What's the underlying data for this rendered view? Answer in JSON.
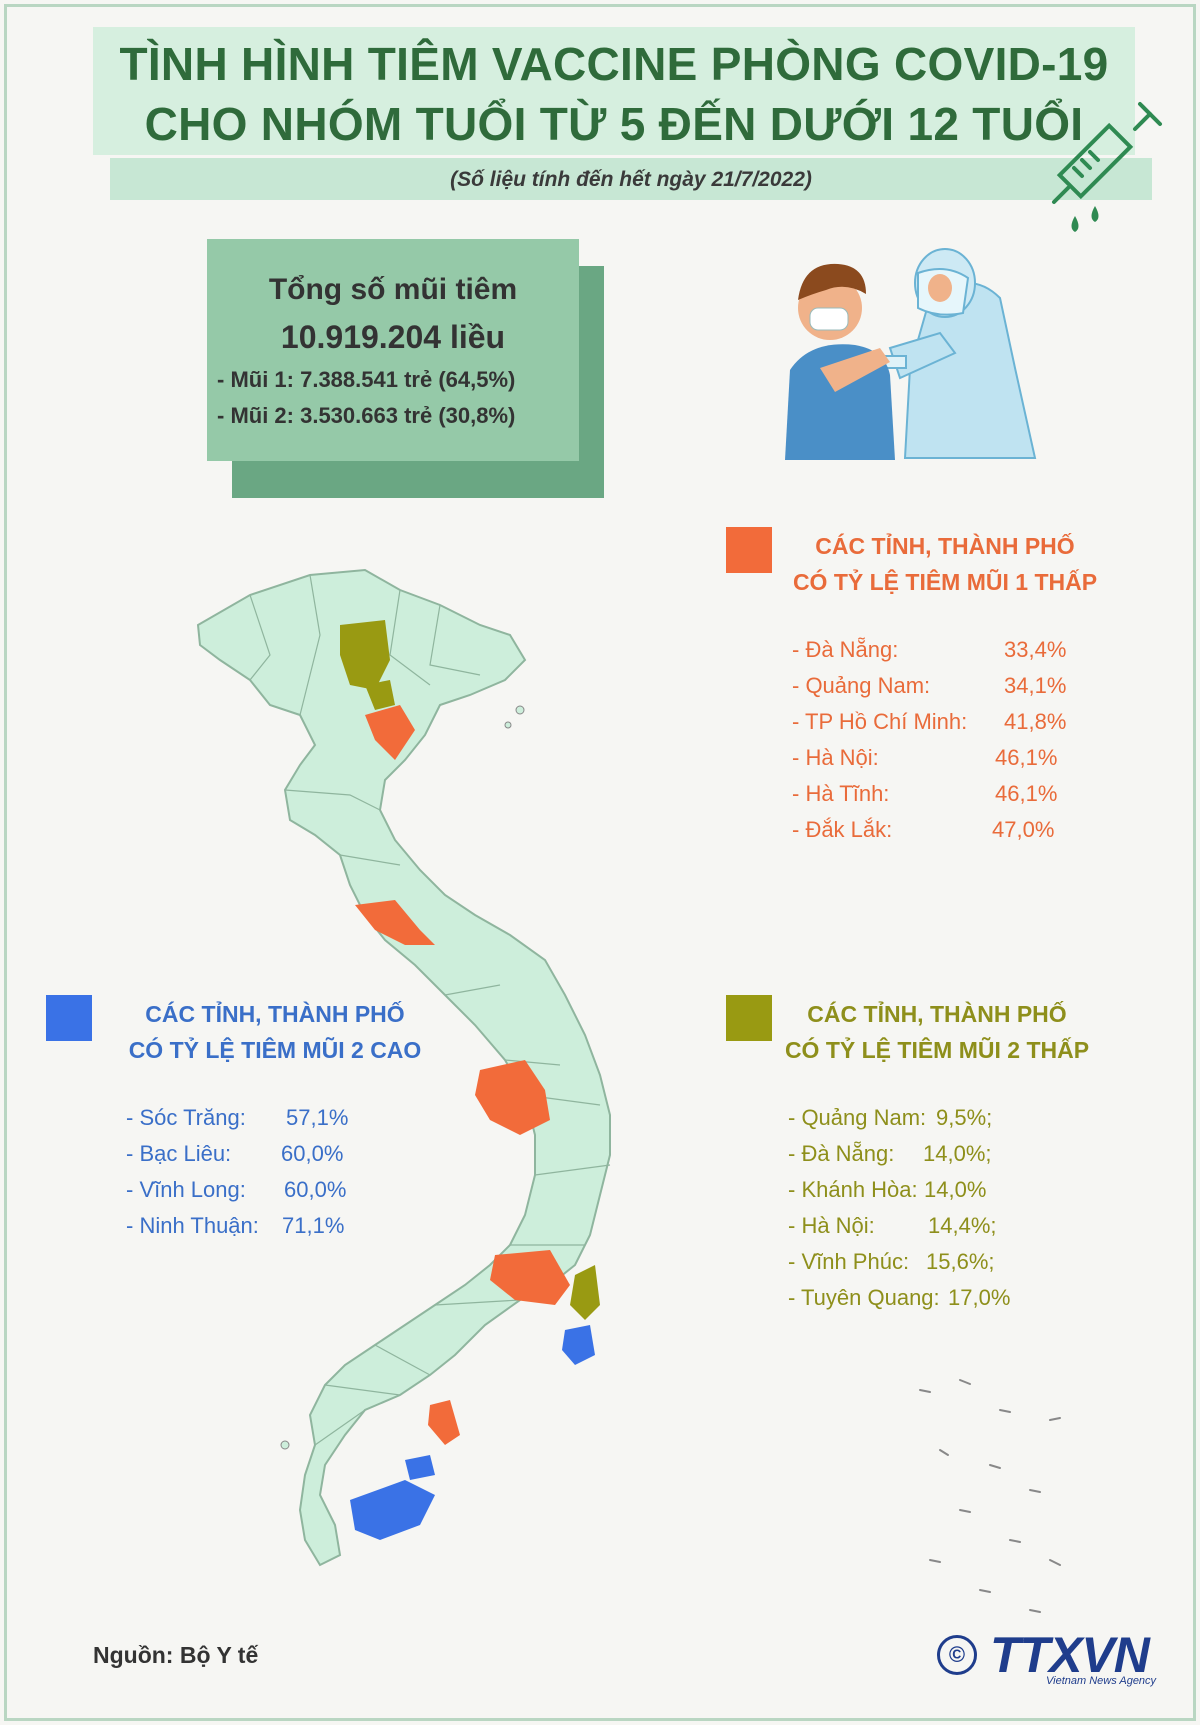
{
  "header": {
    "title_line1": "TÌNH HÌNH TIÊM VACCINE PHÒNG COVID-19",
    "title_line2": "CHO NHÓM TUỔI TỪ 5 ĐẾN DƯỚI 12 TUỔI",
    "subtitle": "(Số liệu tính đến hết ngày 21/7/2022)"
  },
  "total_box": {
    "heading": "Tổng số mũi tiêm",
    "total": "10.919.204 liều",
    "dose1": "- Mũi 1: 7.388.541 trẻ (64,5%)",
    "dose2": "- Mũi 2: 3.530.663 trẻ (30,8%)"
  },
  "legend_low_dose1": {
    "color": "#f26b3a",
    "title_line1": "CÁC TỈNH, THÀNH PHỐ",
    "title_line2": "CÓ TỶ LỆ TIÊM MŨI 1 THẤP",
    "items": [
      {
        "name": "- Đà Nẵng:",
        "value": "33,4%"
      },
      {
        "name": "- Quảng Nam:",
        "value": "34,1%"
      },
      {
        "name": "- TP Hồ Chí Minh:",
        "value": "41,8%"
      },
      {
        "name": "- Hà Nội:",
        "value": "46,1%"
      },
      {
        "name": "- Hà Tĩnh:",
        "value": "46,1%"
      },
      {
        "name": "- Đắk Lắk:",
        "value": "47,0%"
      }
    ]
  },
  "legend_high_dose2": {
    "color": "#3a72e6",
    "title_line1": "CÁC TỈNH, THÀNH PHỐ",
    "title_line2": "CÓ TỶ LỆ TIÊM MŨI 2 CAO",
    "items": [
      {
        "name": "- Sóc Trăng:",
        "value": "57,1%"
      },
      {
        "name": "- Bạc Liêu:",
        "value": "60,0%"
      },
      {
        "name": "- Vĩnh Long:",
        "value": "60,0%"
      },
      {
        "name": "- Ninh Thuận:",
        "value": "71,1%"
      }
    ]
  },
  "legend_low_dose2": {
    "color": "#999a12",
    "title_line1": "CÁC TỈNH, THÀNH PHỐ",
    "title_line2": "CÓ TỶ LỆ TIÊM MŨI 2 THẤP",
    "items": [
      {
        "name": "- Quảng Nam:",
        "value": "9,5%;"
      },
      {
        "name": "- Đà Nẵng:",
        "value": "14,0%;"
      },
      {
        "name": "- Khánh Hòa:",
        "value": "14,0%"
      },
      {
        "name": "- Hà Nội:",
        "value": "14,4%;"
      },
      {
        "name": "- Vĩnh Phúc:",
        "value": "15,6%;"
      },
      {
        "name": "- Tuyên Quang:",
        "value": "17,0%"
      }
    ]
  },
  "map_colors": {
    "base": "#cdeedb",
    "border": "#8fb59e",
    "low_dose1": "#f26b3a",
    "high_dose2": "#3a72e6",
    "low_dose2": "#999a12"
  },
  "footer": {
    "source": "Nguồn: Bộ Y tế",
    "copyright_symbol": "©",
    "logo": "TTXVN",
    "logo_sub": "Vietnam News Agency"
  },
  "icons": [
    "syringe-icon",
    "child-vaccination-illustration",
    "vietnam-map"
  ]
}
